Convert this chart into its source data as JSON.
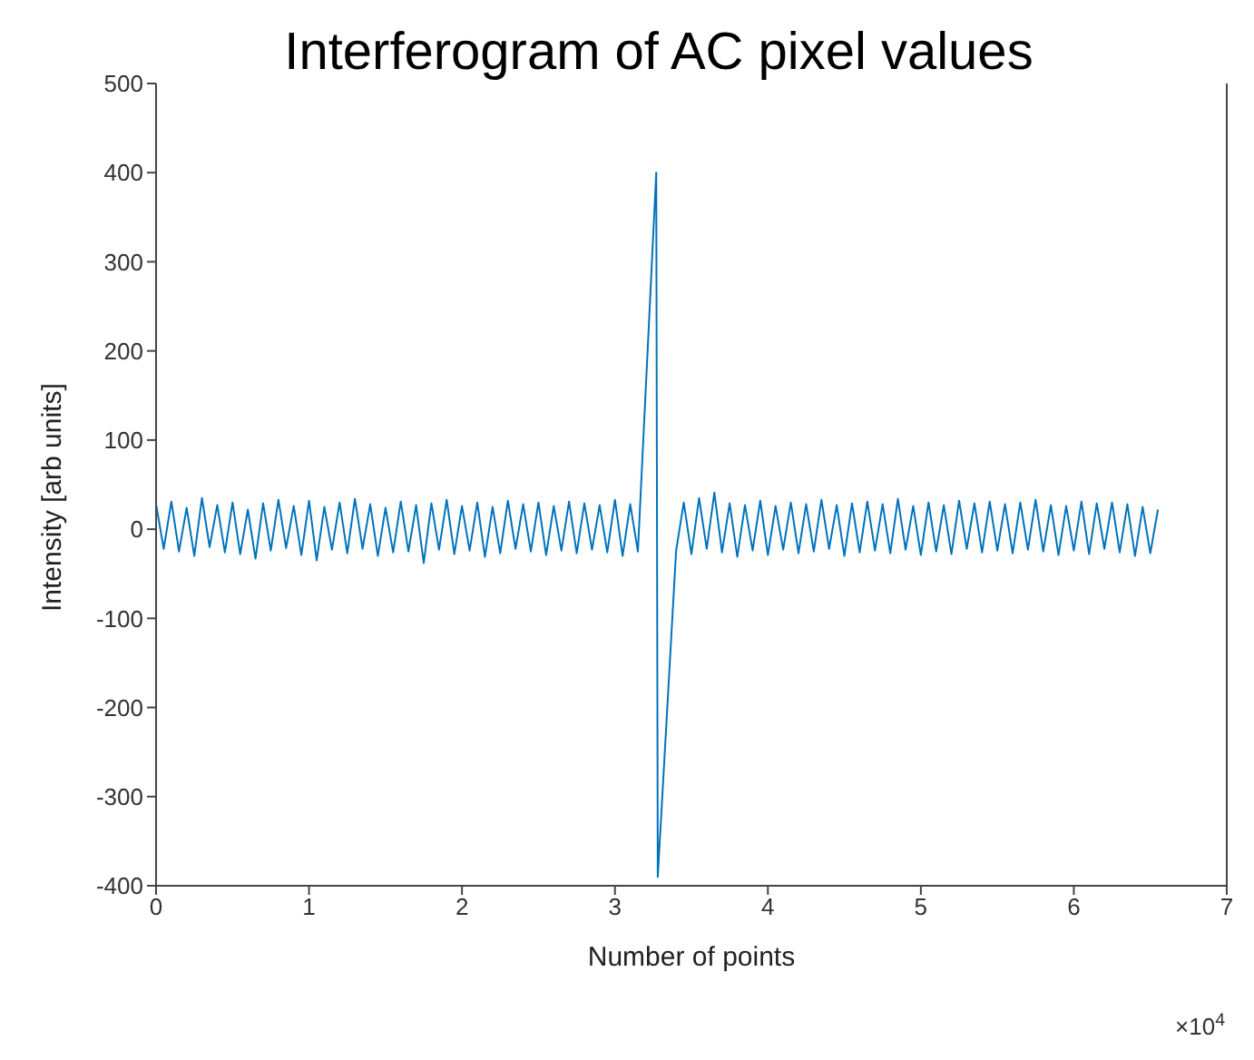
{
  "chart_data": {
    "type": "line",
    "title": "Interferogram of AC pixel values",
    "xlabel": "Number of points",
    "ylabel": "Intensity [arb units]",
    "annotations": [
      "×10$^{4}$"
    ],
    "xlim": [
      0,
      7
    ],
    "xticks": [
      0,
      1,
      2,
      3,
      4,
      5,
      6,
      7
    ],
    "ylim": [
      -400,
      500
    ],
    "yticks": [
      -400,
      -300,
      -200,
      -100,
      0,
      100,
      200,
      300,
      400,
      500
    ],
    "marker": "none",
    "line_style": "solid",
    "x": [
      0,
      0.05,
      0.1,
      0.15,
      0.2,
      0.25,
      0.3,
      0.35,
      0.4,
      0.45,
      0.5,
      0.55,
      0.6,
      0.65,
      0.7,
      0.75,
      0.8,
      0.85,
      0.9,
      0.95,
      1,
      1.05,
      1.1,
      1.15,
      1.2,
      1.25,
      1.3,
      1.35,
      1.4,
      1.45,
      1.5,
      1.55,
      1.6,
      1.65,
      1.7,
      1.75,
      1.8,
      1.85,
      1.9,
      1.95,
      2,
      2.05,
      2.1,
      2.15,
      2.2,
      2.25,
      2.3,
      2.35,
      2.4,
      2.45,
      2.5,
      2.55,
      2.6,
      2.65,
      2.7,
      2.75,
      2.8,
      2.85,
      2.9,
      2.95,
      3,
      3.05,
      3.1,
      3.15,
      3.27,
      3.28,
      3.4,
      3.45,
      3.5,
      3.55,
      3.6,
      3.65,
      3.7,
      3.75,
      3.8,
      3.85,
      3.9,
      3.95,
      4,
      4.05,
      4.1,
      4.15,
      4.2,
      4.25,
      4.3,
      4.35,
      4.4,
      4.45,
      4.5,
      4.55,
      4.6,
      4.65,
      4.7,
      4.75,
      4.8,
      4.85,
      4.9,
      4.95,
      5,
      5.05,
      5.1,
      5.15,
      5.2,
      5.25,
      5.3,
      5.35,
      5.4,
      5.45,
      5.5,
      5.55,
      5.6,
      5.65,
      5.7,
      5.75,
      5.8,
      5.85,
      5.9,
      5.95,
      6,
      6.05,
      6.1,
      6.15,
      6.2,
      6.25,
      6.3,
      6.35,
      6.4,
      6.45,
      6.5,
      6.55
    ],
    "series": [
      {
        "color": "#0072bd",
        "values": [
          28,
          -22,
          31,
          -25,
          24,
          -30,
          35,
          -20,
          27,
          -26,
          30,
          -28,
          22,
          -33,
          29,
          -24,
          33,
          -21,
          26,
          -29,
          32,
          -35,
          25,
          -23,
          30,
          -27,
          34,
          -22,
          28,
          -30,
          24,
          -26,
          31,
          -25,
          27,
          -38,
          29,
          -23,
          33,
          -28,
          26,
          -24,
          30,
          -31,
          25,
          -27,
          32,
          -22,
          28,
          -25,
          30,
          -29,
          26,
          -24,
          31,
          -27,
          29,
          -23,
          27,
          -26,
          33,
          -30,
          28,
          -25,
          400,
          -390,
          -24,
          30,
          -28,
          35,
          -22,
          41,
          -26,
          29,
          -31,
          27,
          -24,
          32,
          -29,
          26,
          -23,
          30,
          -27,
          28,
          -25,
          33,
          -22,
          27,
          -30,
          29,
          -26,
          31,
          -24,
          28,
          -27,
          34,
          -23,
          26,
          -29,
          30,
          -25,
          27,
          -28,
          32,
          -22,
          29,
          -26,
          31,
          -24,
          28,
          -27,
          30,
          -23,
          33,
          -25,
          27,
          -29,
          26,
          -24,
          31,
          -28,
          29,
          -22,
          30,
          -26,
          28,
          -30,
          25,
          -27,
          22
        ]
      }
    ]
  }
}
